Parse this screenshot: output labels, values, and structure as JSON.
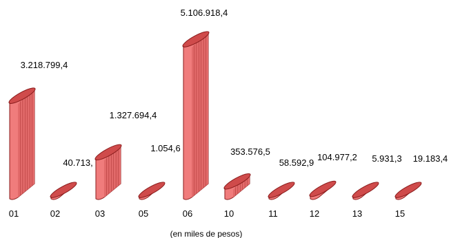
{
  "chart_data": {
    "type": "bar",
    "title": "",
    "xlabel": "(en miles de pesos)",
    "ylabel": "",
    "categories": [
      "01",
      "02",
      "03",
      "05",
      "06",
      "10",
      "11",
      "12",
      "13",
      "15"
    ],
    "values": [
      3218799.4,
      40713,
      1327694.4,
      1054.6,
      5106918.4,
      353576.5,
      58592.9,
      104977.2,
      5931.3,
      19183.4
    ],
    "value_labels": [
      "3.218.799,4",
      "40.713,",
      "1.327.694,4",
      "1.054,6",
      "5.106.918,4",
      "353.576,5",
      "58.592,9",
      "104.977,2",
      "5.931,3",
      "19.183,4"
    ],
    "colors": {
      "bar_front": "#f07c7c",
      "bar_side": "#e26a6a",
      "bar_top": "#cf4b4b",
      "edge": "#8a1c1c",
      "rib": "#b23a3a"
    },
    "grid": false,
    "legend": "none",
    "bar_style": "3d-cylinder"
  }
}
